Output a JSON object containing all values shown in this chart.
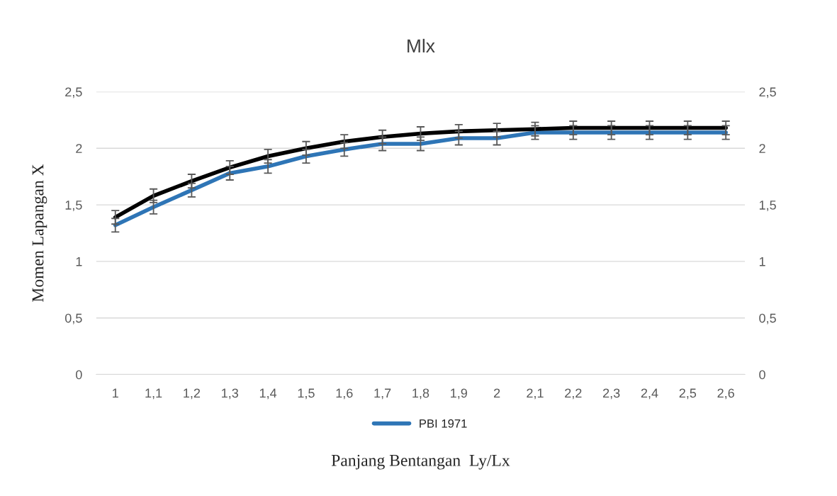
{
  "chart_data": {
    "type": "line",
    "title": "Mlx",
    "xlabel": "Panjang Bentangan  Ly/Lx",
    "ylabel": "Momen Lapangan X",
    "categories": [
      "1",
      "1,1",
      "1,2",
      "1,3",
      "1,4",
      "1,5",
      "1,6",
      "1,7",
      "1,8",
      "1,9",
      "2",
      "2,1",
      "2,2",
      "2,3",
      "2,4",
      "2,5",
      "2,6"
    ],
    "series": [
      {
        "name": "PBI 1971",
        "color": "#2e75b6",
        "values": [
          1.32,
          1.48,
          1.63,
          1.78,
          1.84,
          1.93,
          1.99,
          2.04,
          2.04,
          2.09,
          2.09,
          2.14,
          2.14,
          2.14,
          2.14,
          2.14,
          2.14
        ],
        "errors": [
          0.06,
          0.06,
          0.06,
          0.06,
          0.06,
          0.06,
          0.06,
          0.06,
          0.06,
          0.06,
          0.06,
          0.06,
          0.06,
          0.06,
          0.06,
          0.06,
          0.06
        ]
      },
      {
        "color": "#000000",
        "values": [
          1.39,
          1.58,
          1.71,
          1.83,
          1.93,
          2.0,
          2.06,
          2.1,
          2.13,
          2.15,
          2.16,
          2.17,
          2.18,
          2.18,
          2.18,
          2.18,
          2.18
        ],
        "errors": [
          0.06,
          0.06,
          0.06,
          0.06,
          0.06,
          0.06,
          0.06,
          0.06,
          0.06,
          0.06,
          0.06,
          0.06,
          0.06,
          0.06,
          0.06,
          0.06,
          0.06
        ]
      }
    ],
    "ylim": [
      0,
      2.5
    ],
    "yticks": [
      0,
      {
        "value": 0.5,
        "label": "0,5"
      },
      1,
      {
        "value": 1.5,
        "label": "1,5"
      },
      2,
      {
        "value": 2.5,
        "label": "2,5"
      }
    ],
    "y2lim": [
      0,
      2.5
    ],
    "y2ticks": [
      0,
      {
        "value": 0.5,
        "label": "0,5"
      },
      1,
      {
        "value": 1.5,
        "label": "1,5"
      },
      2,
      {
        "value": 2.5,
        "label": "2,5"
      }
    ],
    "grid": "y",
    "legend": "bottom",
    "line_style": "solid",
    "marker": "none"
  }
}
